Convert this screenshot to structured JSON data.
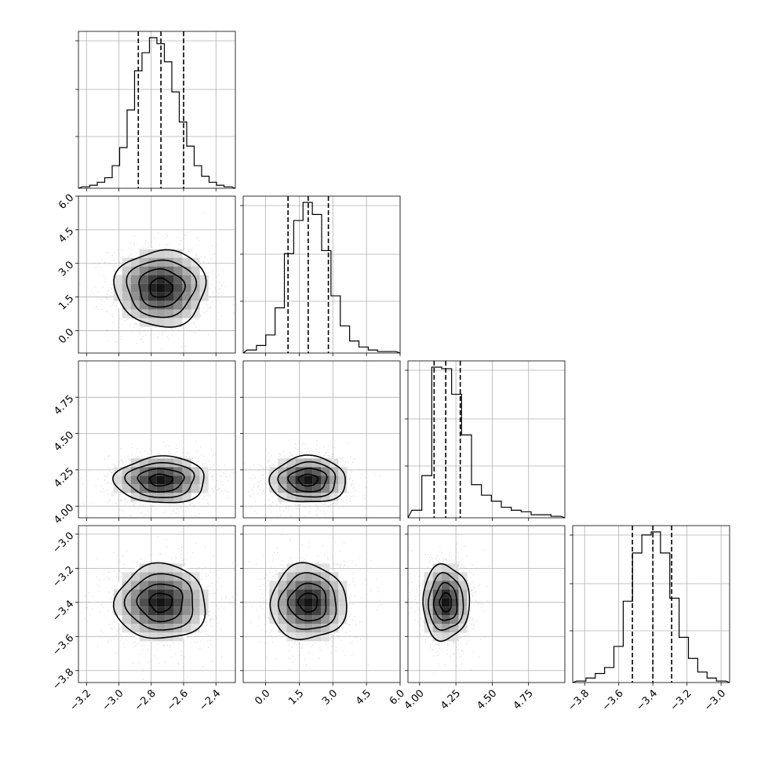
{
  "chart_data": {
    "type": "corner",
    "title": "",
    "parameters": [
      {
        "index": 0,
        "label": "",
        "range": [
          -3.25,
          -2.28
        ],
        "ticks": [
          "−3.2",
          "−3.0",
          "−2.8",
          "−2.6",
          "−2.4"
        ],
        "tick_values": [
          -3.2,
          -3.0,
          -2.8,
          -2.6,
          -2.4
        ],
        "quantiles": [
          -2.88,
          -2.74,
          -2.6
        ],
        "mean": -2.74,
        "sd": 0.14
      },
      {
        "index": 1,
        "label": "",
        "range": [
          -1.0,
          6.0
        ],
        "ticks": [
          "0.0",
          "1.5",
          "3.0",
          "4.5",
          "6.0"
        ],
        "tick_values": [
          0.0,
          1.5,
          3.0,
          4.5,
          6.0
        ],
        "quantiles": [
          1.0,
          1.9,
          2.8
        ],
        "mean": 1.9,
        "sd": 0.85
      },
      {
        "index": 2,
        "label": "",
        "range": [
          3.92,
          5.0
        ],
        "ticks": [
          "4.00",
          "4.25",
          "4.50",
          "4.75"
        ],
        "tick_values": [
          4.0,
          4.25,
          4.5,
          4.75
        ],
        "quantiles": [
          4.1,
          4.18,
          4.28
        ],
        "mean": 4.18,
        "sd": 0.08
      },
      {
        "index": 3,
        "label": "",
        "range": [
          -3.87,
          -2.95
        ],
        "ticks": [
          "−3.8",
          "−3.6",
          "−3.4",
          "−3.2",
          "−3.0"
        ],
        "tick_values": [
          -3.8,
          -3.6,
          -3.4,
          -3.2,
          -3.0
        ],
        "quantiles": [
          -3.52,
          -3.4,
          -3.29
        ],
        "mean": -3.4,
        "sd": 0.11
      }
    ],
    "histograms": [
      {
        "param": 0,
        "values": [
          1,
          2,
          4,
          7,
          15,
          27,
          52,
          78,
          90,
          100,
          96,
          84,
          64,
          44,
          28,
          15,
          8,
          4,
          2,
          1
        ]
      },
      {
        "param": 1,
        "values": [
          2,
          5,
          12,
          30,
          66,
          88,
          100,
          92,
          68,
          38,
          18,
          8,
          4,
          2,
          1,
          1
        ]
      },
      {
        "param": 2,
        "values": [
          5,
          28,
          100,
          99,
          82,
          55,
          22,
          15,
          11,
          7,
          5,
          4,
          2,
          2,
          1
        ]
      },
      {
        "param": 3,
        "values": [
          1,
          3,
          6,
          10,
          24,
          54,
          86,
          98,
          100,
          86,
          56,
          30,
          16,
          7,
          3,
          1
        ]
      }
    ],
    "contours": "2-D density contours at 0.5, 1, 1.5, 2 sigma with grayscale density and scatter points",
    "grid": true,
    "legend": "none"
  }
}
